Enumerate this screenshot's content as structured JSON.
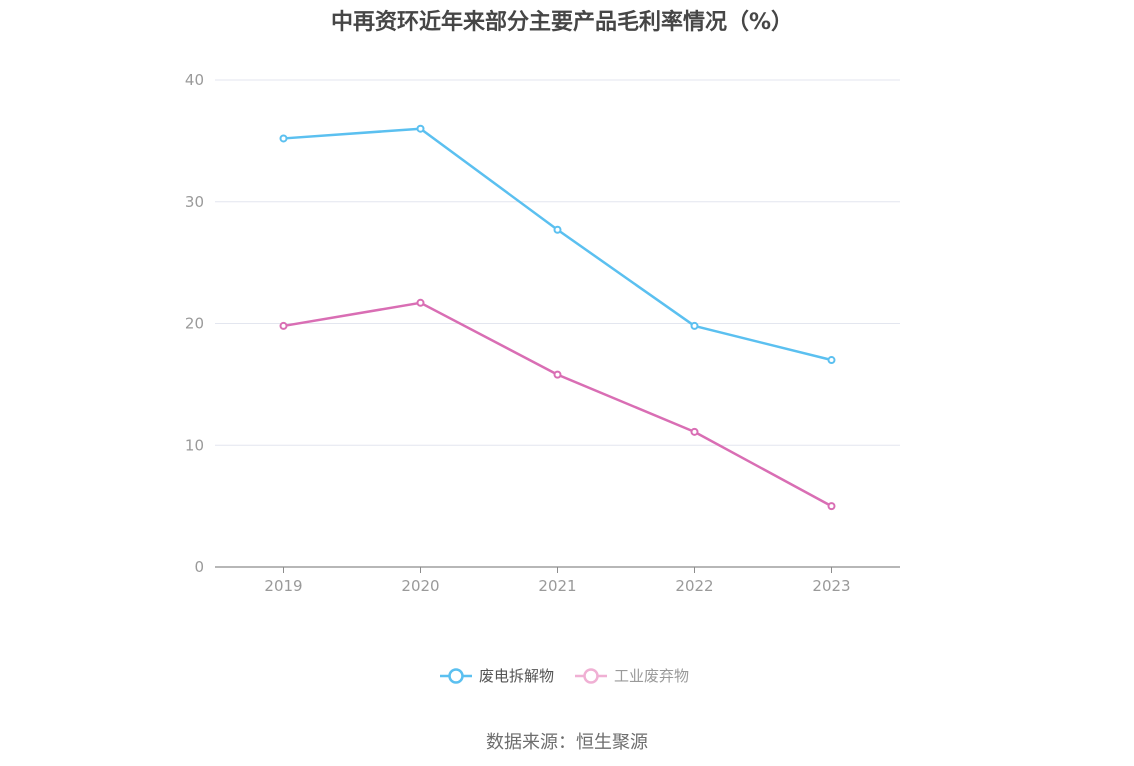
{
  "chart_data": {
    "type": "line",
    "title": "中再资环近年来部分主要产品毛利率情况（%）",
    "categories": [
      "2019",
      "2020",
      "2021",
      "2022",
      "2023"
    ],
    "series": [
      {
        "name": "废电拆解物",
        "color": "#5bc0f0",
        "values": [
          35.2,
          36.0,
          27.7,
          19.8,
          17.0
        ]
      },
      {
        "name": "工业废弃物",
        "color": "#d96eb4",
        "values": [
          19.8,
          21.7,
          15.8,
          11.1,
          5.0
        ]
      }
    ],
    "ylim": [
      0,
      40
    ],
    "yticks": [
      0,
      10,
      20,
      30,
      40
    ],
    "grid": true,
    "legend_position": "bottom"
  },
  "legend_colors": {
    "faded_series_color": "#f0b0d4",
    "faded_text_color": "#9a9a9a",
    "active_text_color": "#555555"
  },
  "source": "数据来源：恒生聚源"
}
